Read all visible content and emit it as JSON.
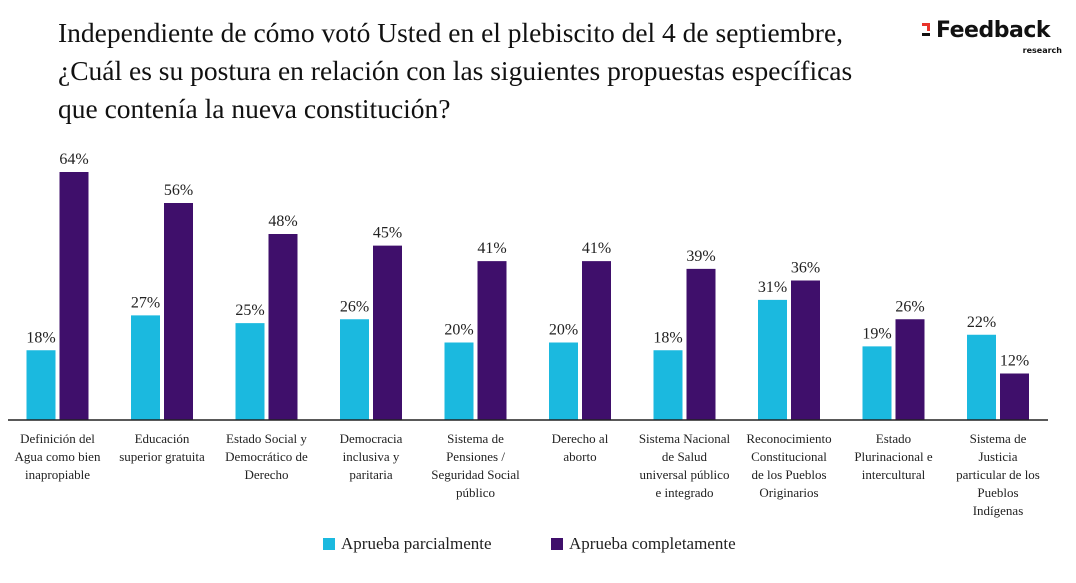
{
  "title": "Independiente de cómo votó Usted en el plebiscito del 4 de septiembre, ¿Cuál es su postura en relación con las siguientes propuestas específicas que contenía la nueva constitución?",
  "logo": {
    "main": "Feedback",
    "sub": "research"
  },
  "colors": {
    "partial": "#1bb9df",
    "complete": "#3f0f6b",
    "axis": "#222222"
  },
  "chart_data": {
    "type": "bar",
    "title": "Independiente de cómo votó Usted en el plebiscito del 4 de septiembre, ¿Cuál es su postura en relación con las siguientes propuestas específicas que contenía la nueva constitución?",
    "categories": [
      [
        "Definición del",
        "Agua como bien",
        "inapropiable"
      ],
      [
        "Educación",
        "superior gratuita"
      ],
      [
        "Estado Social y",
        "Democrático de",
        "Derecho"
      ],
      [
        "Democracia",
        "inclusiva y",
        "paritaria"
      ],
      [
        "Sistema de",
        "Pensiones /",
        "Seguridad Social",
        "público"
      ],
      [
        "Derecho al",
        "aborto"
      ],
      [
        "Sistema Nacional",
        "de Salud",
        "universal público",
        "e integrado"
      ],
      [
        "Reconocimiento",
        "Constitucional",
        "de los Pueblos",
        "Originarios"
      ],
      [
        "Estado",
        "Plurinacional e",
        "intercultural"
      ],
      [
        "Sistema de",
        "Justicia",
        "particular de los",
        "Pueblos",
        "Indígenas"
      ]
    ],
    "series": [
      {
        "name": "Aprueba parcialmente",
        "values": [
          18,
          27,
          25,
          26,
          20,
          20,
          18,
          31,
          19,
          22
        ],
        "labels": [
          "18%",
          "27%",
          "25%",
          "26%",
          "20%",
          "20%",
          "18%",
          "31%",
          "19%",
          "22%"
        ]
      },
      {
        "name": "Aprueba completamente",
        "values": [
          64,
          56,
          48,
          45,
          41,
          41,
          39,
          36,
          26,
          12
        ],
        "labels": [
          "64%",
          "56%",
          "48%",
          "45%",
          "41%",
          "41%",
          "39%",
          "36%",
          "26%",
          "12%"
        ]
      }
    ],
    "ylim": [
      0,
      64
    ],
    "xlabel": "",
    "ylabel": "",
    "grid": false,
    "legend": "bottom"
  }
}
